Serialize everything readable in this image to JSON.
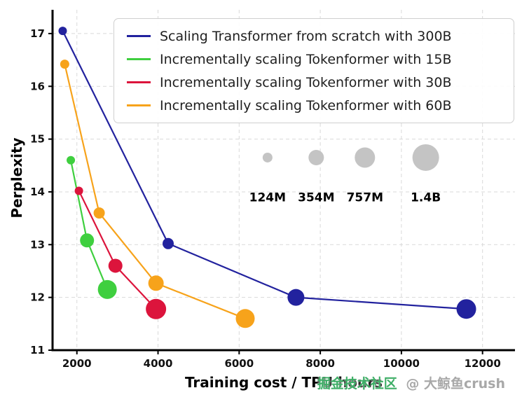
{
  "watermark": {
    "community": "掘金技术社区",
    "author": "@ 大鲸鱼crush",
    "community_color": "#3fae67",
    "author_color": "#a8a8a8"
  },
  "chart_data": {
    "type": "line",
    "title": "",
    "xlabel": "Training cost / TPU hours",
    "ylabel": "Perplexity",
    "xlim": [
      1400,
      12800
    ],
    "ylim": [
      11,
      17.45
    ],
    "xticks": [
      2000,
      4000,
      6000,
      8000,
      10000,
      12000
    ],
    "yticks": [
      11,
      12,
      13,
      14,
      15,
      16,
      17
    ],
    "grid": true,
    "grid_color": "#d9d9d9",
    "axis_color": "#000000",
    "legend_position": "upper center",
    "series": [
      {
        "name": "Scaling Transformer from scratch with 300B",
        "color": "#22229e",
        "points": [
          {
            "x": 1650,
            "y": 17.05,
            "r": 6
          },
          {
            "x": 4250,
            "y": 13.02,
            "r": 8
          },
          {
            "x": 7400,
            "y": 12.0,
            "r": 12
          },
          {
            "x": 11600,
            "y": 11.78,
            "r": 14
          }
        ]
      },
      {
        "name": "Incrementally scaling Tokenformer with 15B",
        "color": "#3fcf3f",
        "points": [
          {
            "x": 1850,
            "y": 14.6,
            "r": 6
          },
          {
            "x": 2250,
            "y": 13.08,
            "r": 10
          },
          {
            "x": 2750,
            "y": 12.15,
            "r": 13.5
          }
        ]
      },
      {
        "name": "Incrementally scaling Tokenformer with 30B",
        "color": "#dc143c",
        "points": [
          {
            "x": 2050,
            "y": 14.02,
            "r": 6
          },
          {
            "x": 2950,
            "y": 12.6,
            "r": 10
          },
          {
            "x": 3950,
            "y": 11.78,
            "r": 14.5
          }
        ]
      },
      {
        "name": "Incrementally scaling Tokenformer with 60B",
        "color": "#f7a31b",
        "points": [
          {
            "x": 1700,
            "y": 16.42,
            "r": 6.5
          },
          {
            "x": 2550,
            "y": 13.6,
            "r": 8
          },
          {
            "x": 3950,
            "y": 12.27,
            "r": 11
          },
          {
            "x": 6150,
            "y": 11.6,
            "r": 13.5
          }
        ]
      }
    ],
    "size_legend": {
      "labels": [
        "124M",
        "354M",
        "757M",
        "1.4B"
      ],
      "x": [
        6700,
        7900,
        9100,
        10600
      ],
      "y": 14.65,
      "label_y": 13.82,
      "radii": [
        7,
        11,
        14.5,
        19
      ],
      "color": "#c4c4c4",
      "label_color": "#000000"
    }
  }
}
